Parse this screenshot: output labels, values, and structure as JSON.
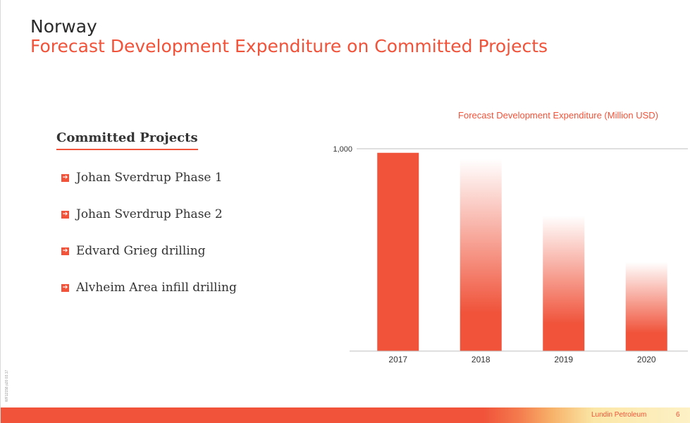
{
  "header": {
    "title": "Norway",
    "subtitle": "Forecast Development Expenditure on Committed Projects"
  },
  "projects": {
    "heading": "Committed Projects",
    "items": [
      "Johan Sverdrup Phase 1",
      "Johan Sverdrup Phase 2",
      "Edvard Grieg drilling",
      "Alvheim Area infill drilling"
    ]
  },
  "chart_data": {
    "type": "bar",
    "title": "Forecast Development Expenditure (Million USD)",
    "categories": [
      "2017",
      "2018",
      "2019",
      "2020"
    ],
    "values": [
      980,
      950,
      670,
      440
    ],
    "yticks": [
      "1,000"
    ],
    "ylim": [
      0,
      1000
    ],
    "colors": {
      "bar": "#f0533a",
      "axis": "#bfbfbf"
    },
    "grid": false
  },
  "footer": {
    "company": "Lundin Petroleum",
    "page": "6",
    "side_code": "WF12158  p20  03.17"
  }
}
